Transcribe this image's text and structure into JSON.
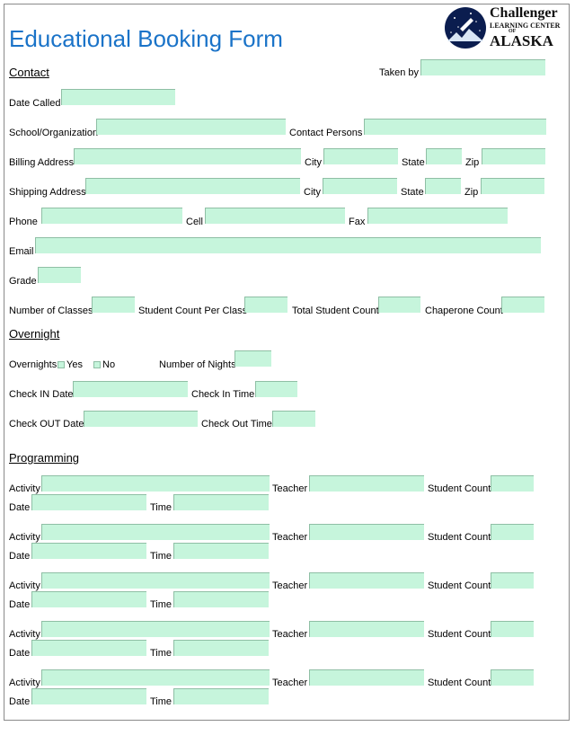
{
  "title": "Educational Booking Form",
  "logo": {
    "line1": "Challenger",
    "line2": "LEARNING CENTER",
    "line3": "OF",
    "line4": "ALASKA"
  },
  "contact": {
    "heading": "Contact",
    "taken_by": "Taken by",
    "date_called": "Date Called",
    "school": "School/Organization",
    "contact_persons": "Contact Persons",
    "billing_address": "Billing Address",
    "shipping_address": "Shipping Address",
    "city": "City",
    "state": "State",
    "zip": "Zip",
    "phone": "Phone",
    "cell": "Cell",
    "fax": "Fax",
    "email": "Email",
    "grade": "Grade",
    "number_of_classes": "Number of Classes",
    "student_count_per_class": "Student Count Per Class",
    "total_student_count": "Total Student Count",
    "chaperone_count": "Chaperone Count"
  },
  "overnight": {
    "heading": "Overnight",
    "overnights": "Overnights",
    "yes": "Yes",
    "no": "No",
    "number_of_nights": "Number of Nights",
    "check_in_date": "Check IN Date",
    "check_in_time": "Check In Time",
    "check_out_date": "Check OUT Date",
    "check_out_time": "Check Out Time"
  },
  "programming": {
    "heading": "Programming",
    "activity": "Activity",
    "teacher": "Teacher",
    "student_count": "Student Count",
    "date": "Date",
    "time": "Time"
  },
  "colors": {
    "field": "#c6f5dc",
    "title": "#1a73c8"
  }
}
